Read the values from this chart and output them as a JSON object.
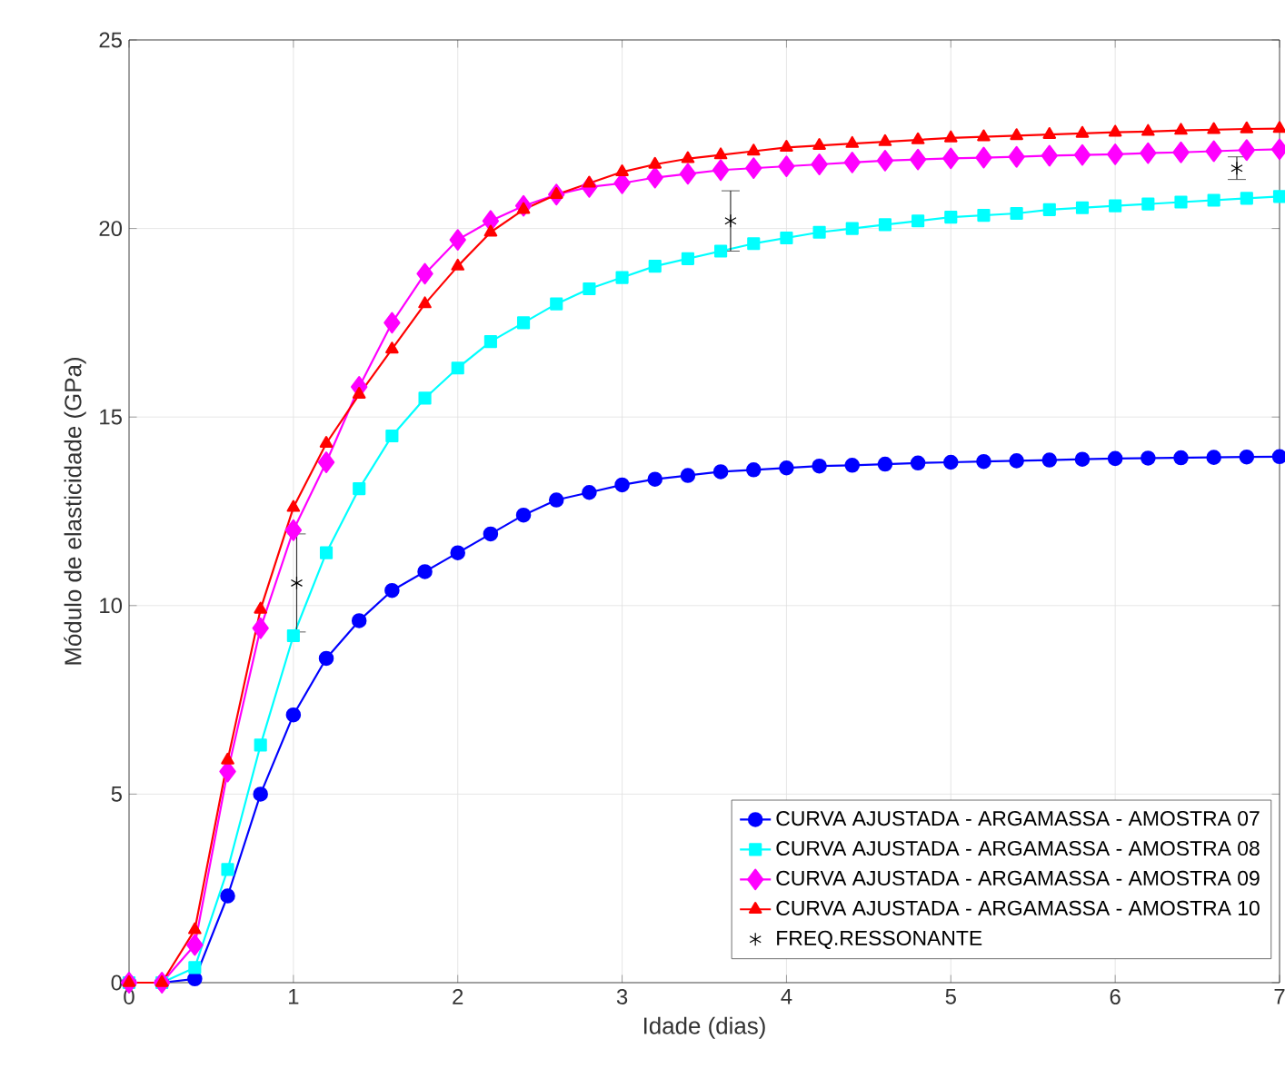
{
  "chart_data": {
    "type": "line",
    "xlabel": "Idade (dias)",
    "ylabel": "Módulo de elasticidade (GPa)",
    "x": [
      0,
      0.2,
      0.4,
      0.6,
      0.8,
      1.0,
      1.2,
      1.4,
      1.6,
      1.8,
      2.0,
      2.2,
      2.4,
      2.6,
      2.8,
      3.0,
      3.2,
      3.4,
      3.6,
      3.8,
      4.0,
      4.2,
      4.4,
      4.6,
      4.8,
      5.0,
      5.2,
      5.4,
      5.6,
      5.8,
      6.0,
      6.2,
      6.4,
      6.6,
      6.8,
      7.0
    ],
    "series": [
      {
        "name": "CURVA AJUSTADA - ARGAMASSA - AMOSTRA 07",
        "color": "#0000ff",
        "marker": "circle",
        "values": [
          0,
          0,
          0.1,
          2.3,
          5.0,
          7.1,
          8.6,
          9.6,
          10.4,
          10.9,
          11.4,
          11.9,
          12.4,
          12.8,
          13.0,
          13.2,
          13.35,
          13.45,
          13.55,
          13.6,
          13.65,
          13.7,
          13.72,
          13.75,
          13.78,
          13.8,
          13.82,
          13.84,
          13.86,
          13.88,
          13.9,
          13.91,
          13.92,
          13.93,
          13.94,
          13.95
        ]
      },
      {
        "name": "CURVA AJUSTADA - ARGAMASSA - AMOSTRA 08",
        "color": "#00ffff",
        "marker": "square",
        "values": [
          0,
          0,
          0.4,
          3.0,
          6.3,
          9.2,
          11.4,
          13.1,
          14.5,
          15.5,
          16.3,
          17.0,
          17.5,
          18.0,
          18.4,
          18.7,
          19.0,
          19.2,
          19.4,
          19.6,
          19.75,
          19.9,
          20.0,
          20.1,
          20.2,
          20.3,
          20.35,
          20.4,
          20.5,
          20.55,
          20.6,
          20.65,
          20.7,
          20.75,
          20.8,
          20.85
        ]
      },
      {
        "name": "CURVA AJUSTADA - ARGAMASSA - AMOSTRA 09",
        "color": "#ff00ff",
        "marker": "diamond",
        "values": [
          0,
          0,
          1.0,
          5.6,
          9.4,
          12.0,
          13.8,
          15.8,
          17.5,
          18.8,
          19.7,
          20.2,
          20.6,
          20.9,
          21.1,
          21.2,
          21.35,
          21.45,
          21.55,
          21.6,
          21.65,
          21.7,
          21.75,
          21.8,
          21.83,
          21.86,
          21.88,
          21.9,
          21.93,
          21.95,
          21.97,
          22.0,
          22.02,
          22.05,
          22.08,
          22.1
        ]
      },
      {
        "name": "CURVA AJUSTADA - ARGAMASSA - AMOSTRA 10",
        "color": "#ff0000",
        "marker": "triangle",
        "values": [
          0,
          0,
          1.4,
          5.9,
          9.9,
          12.6,
          14.3,
          15.6,
          16.8,
          18.0,
          19.0,
          19.9,
          20.5,
          20.9,
          21.2,
          21.5,
          21.7,
          21.85,
          21.95,
          22.05,
          22.15,
          22.2,
          22.25,
          22.3,
          22.35,
          22.4,
          22.43,
          22.46,
          22.49,
          22.52,
          22.55,
          22.57,
          22.6,
          22.62,
          22.64,
          22.65
        ]
      },
      {
        "name": "FREQ.RESSONANTE",
        "type": "scatter",
        "color": "#000000",
        "marker": "cross",
        "x": [
          1.02,
          3.66,
          6.74
        ],
        "values": [
          10.6,
          20.2,
          21.6
        ],
        "errors": [
          1.3,
          0.8,
          0.3
        ]
      }
    ],
    "xlim": [
      0,
      7
    ],
    "ylim": [
      0,
      25
    ],
    "xticks": [
      0,
      1,
      2,
      3,
      4,
      5,
      6,
      7
    ],
    "yticks": [
      0,
      5,
      10,
      15,
      20,
      25
    ],
    "grid": true,
    "legend": "bottom right"
  }
}
